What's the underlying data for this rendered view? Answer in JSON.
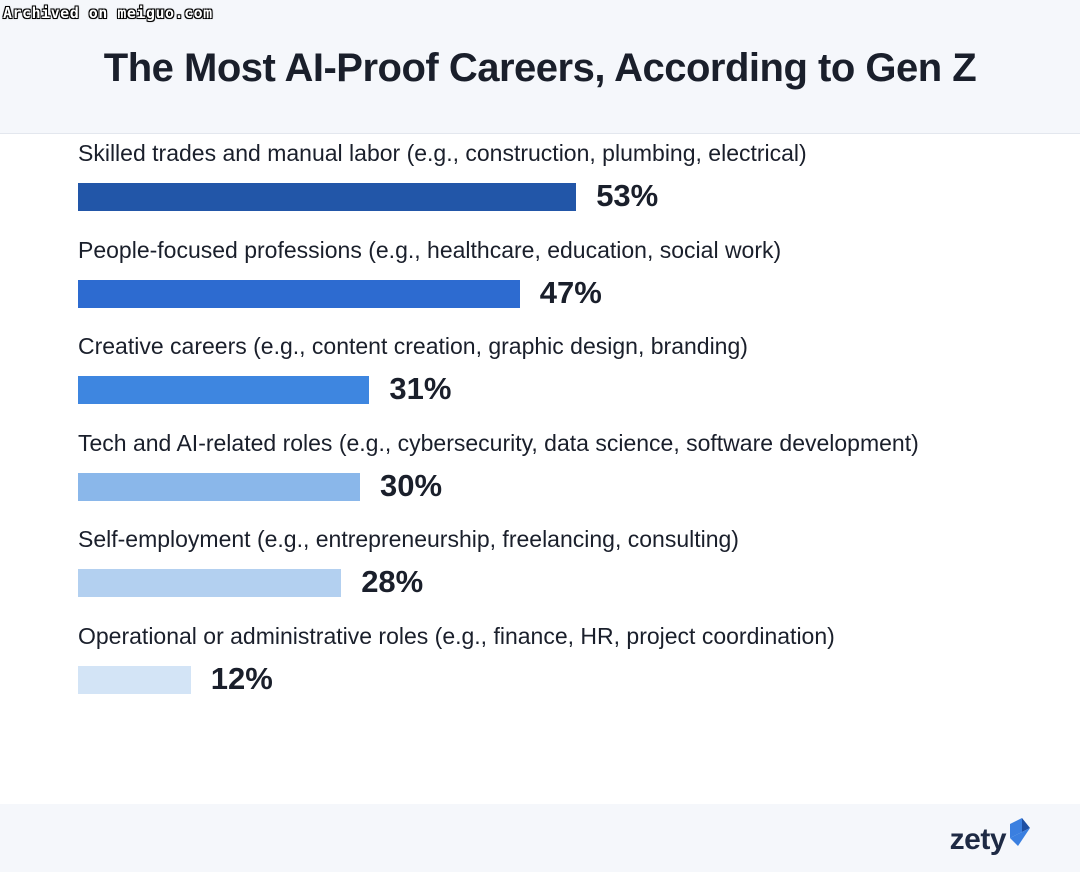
{
  "watermark": "Archived on meiguo.com",
  "brand": {
    "logo_text": "zety",
    "colors": {
      "text": "#1e2a44",
      "mark": "#3a7fe0",
      "mark_dark": "#1e4fa3"
    }
  },
  "chart_data": {
    "type": "bar",
    "orientation": "horizontal",
    "title": "The Most AI-Proof Careers, According to Gen Z",
    "xlabel": "",
    "ylabel": "",
    "xlim": [
      0,
      100
    ],
    "grid": false,
    "legend": "none",
    "categories": [
      "Skilled trades and manual labor (e.g., construction, plumbing, electrical)",
      "People-focused professions (e.g., healthcare, education, social work)",
      "Creative careers (e.g., content creation, graphic design, branding)",
      "Tech and AI-related roles (e.g., cybersecurity, data science, software development)",
      "Self-employment (e.g., entrepreneurship, freelancing, consulting)",
      "Operational or administrative roles (e.g., finance, HR, project coordination)"
    ],
    "values": [
      53,
      47,
      31,
      30,
      28,
      12
    ],
    "value_labels": [
      "53%",
      "47%",
      "31%",
      "30%",
      "28%",
      "12%"
    ],
    "bar_colors": [
      "#2256a8",
      "#2d6bd0",
      "#3e86e0",
      "#8ab7ea",
      "#b3d0f0",
      "#d3e4f6"
    ]
  }
}
